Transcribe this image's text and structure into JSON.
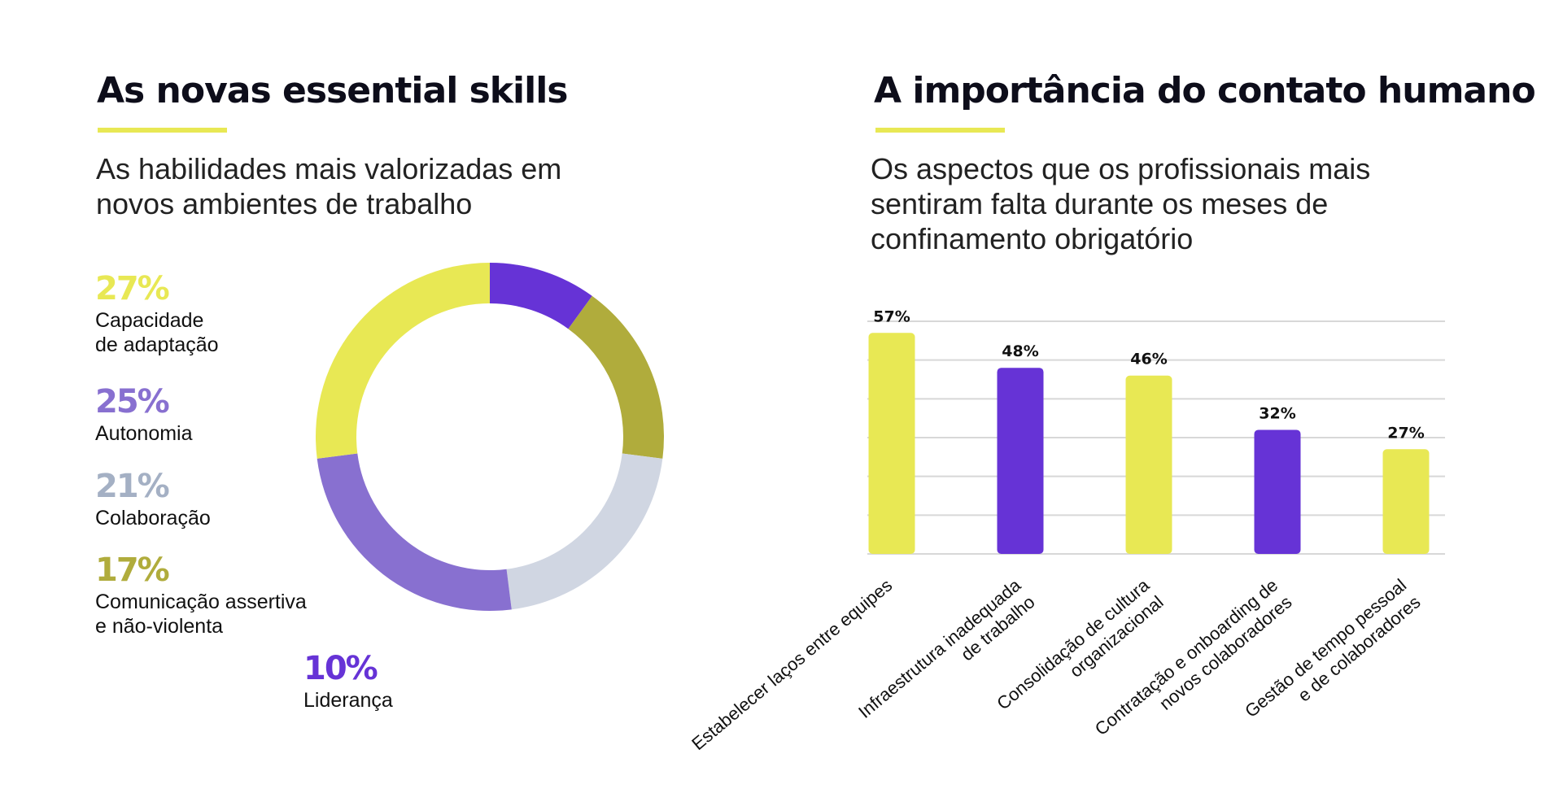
{
  "left_panel": {
    "title": "As novas essential skills",
    "subtitle_lines": [
      "As habilidades mais valorizadas em",
      "novos ambientes de trabalho"
    ]
  },
  "right_panel": {
    "title": "A importância do contato humano",
    "subtitle_lines": [
      "Os aspectos que os profissionais mais",
      "sentiram falta durante os meses de",
      "confinamento obrigatório"
    ]
  },
  "colors": {
    "accent_yellow": "#e8e854",
    "purple_dark": "#6633d6",
    "purple_light": "#8870d0",
    "grey_blue": "#d0d6e2",
    "olive": "#b0ac3c",
    "legend_grey_blue": "#a4b0c4",
    "gridline": "#d8d8d8"
  },
  "chart_data": [
    {
      "type": "pie",
      "donut": true,
      "slices": [
        {
          "label": "Capacidade de adaptação",
          "value": 27,
          "display": "27%",
          "label_lines": [
            "Capacidade",
            "de adaptação"
          ],
          "color": "#e8e854",
          "legend_color": "#e8e854"
        },
        {
          "label": "Autonomia",
          "value": 25,
          "display": "25%",
          "label_lines": [
            "Autonomia"
          ],
          "color": "#8870d0",
          "legend_color": "#8870d0"
        },
        {
          "label": "Colaboração",
          "value": 21,
          "display": "21%",
          "label_lines": [
            "Colaboração"
          ],
          "color": "#d0d6e2",
          "legend_color": "#a4b0c4"
        },
        {
          "label": "Comunicação assertiva e não-violenta",
          "value": 17,
          "display": "17%",
          "label_lines": [
            "Comunicação assertiva",
            "e não-violenta"
          ],
          "color": "#b0ac3c",
          "legend_color": "#b0ac3c"
        },
        {
          "label": "Liderança",
          "value": 10,
          "display": "10%",
          "label_lines": [
            "Liderança"
          ],
          "color": "#6633d6",
          "legend_color": "#6633d6"
        }
      ],
      "slice_order_clockwise_from_top": [
        4,
        3,
        2,
        1,
        0
      ]
    },
    {
      "type": "bar",
      "categories": [
        "Estabelecer laços entre equipes",
        "Infraestrutura inadequada de trabalho",
        "Consolidação de cultura organizacional",
        "Contratação e onboarding de novos colaboradores",
        "Gestão de tempo pessoal e de colaboradores"
      ],
      "category_label_lines": [
        [
          "Estabelecer laços entre equipes"
        ],
        [
          "Infraestrutura inadequada",
          "de trabalho"
        ],
        [
          "Consolidação de cultura",
          "organizacional"
        ],
        [
          "Contratação e onboarding de",
          "novos colaboradores"
        ],
        [
          "Gestão de tempo pessoal",
          "e de colaboradores"
        ]
      ],
      "values": [
        57,
        48,
        46,
        32,
        27
      ],
      "value_labels": [
        "57%",
        "48%",
        "46%",
        "32%",
        "27%"
      ],
      "bar_colors": [
        "#e8e854",
        "#6633d6",
        "#e8e854",
        "#6633d6",
        "#e8e854"
      ],
      "ylim": [
        0,
        60
      ],
      "grid": true
    }
  ]
}
